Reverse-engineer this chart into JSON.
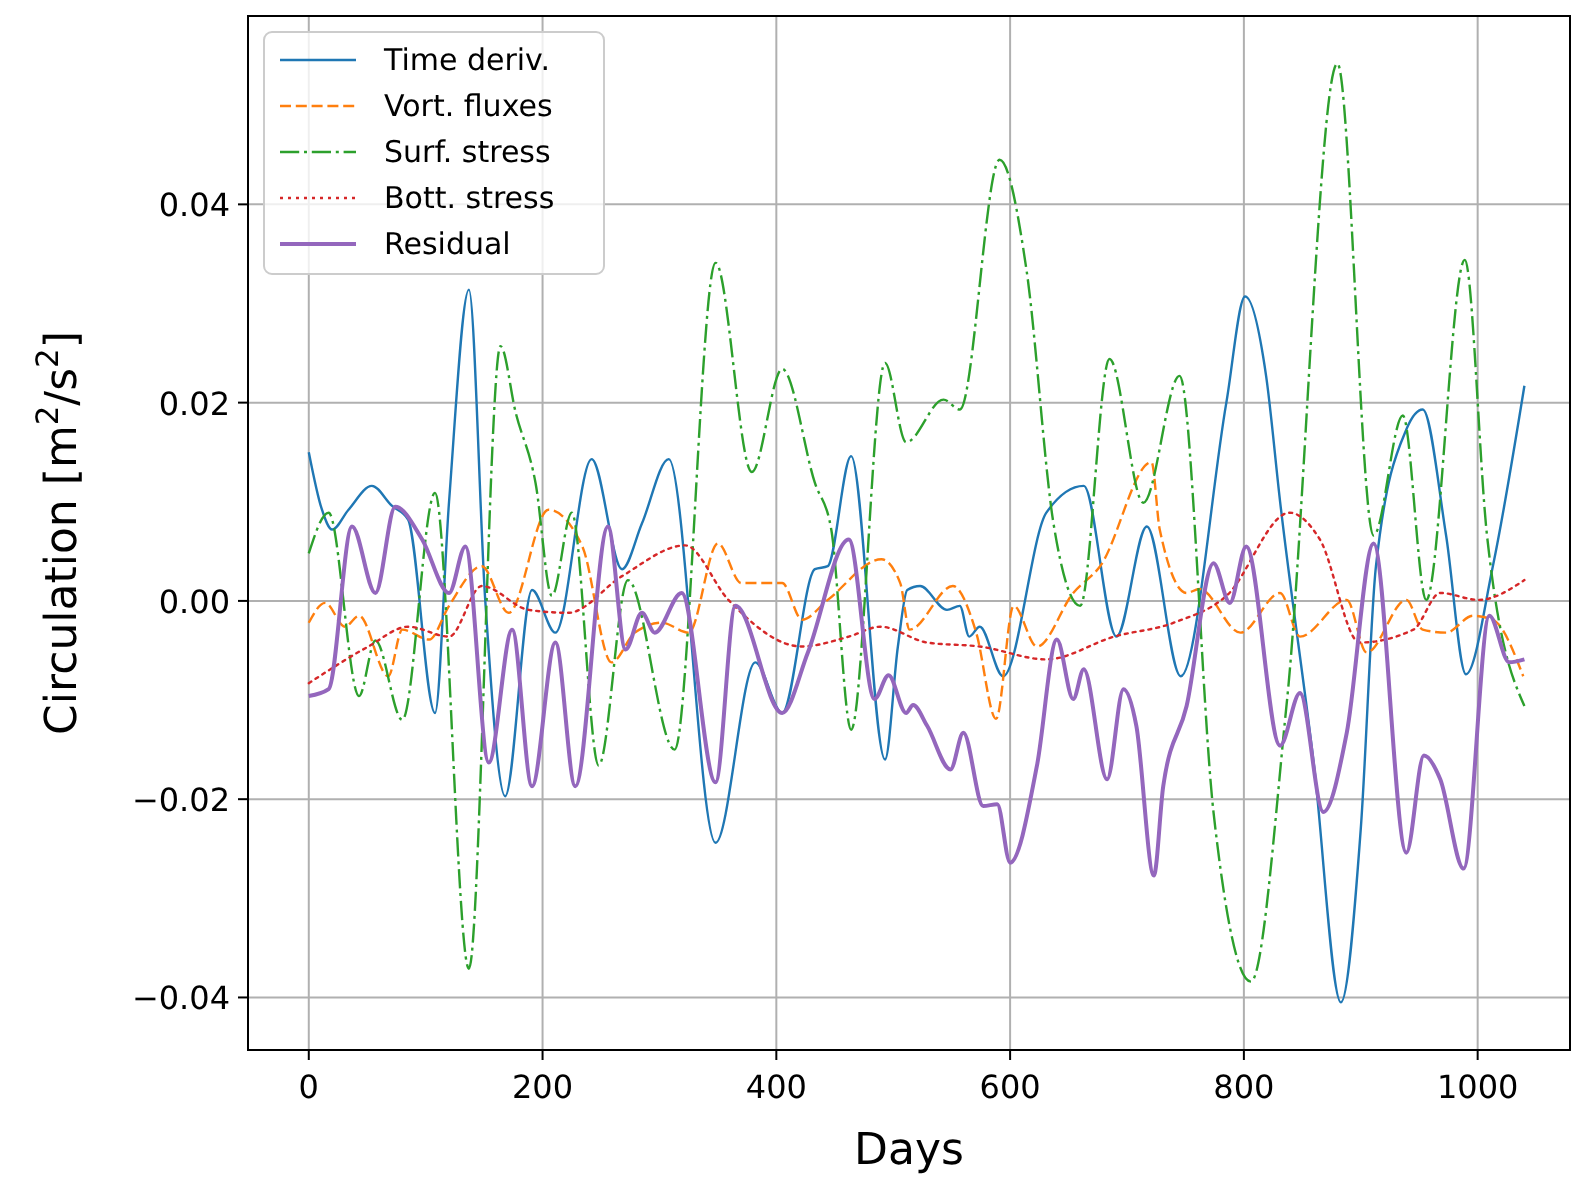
{
  "chart_data": {
    "type": "line",
    "xlabel": "Days",
    "ylabel": "Circulation [m$^{2}$/s$^{2}$]",
    "xlim": [
      -52,
      1079
    ],
    "ylim": [
      -0.0453,
      0.059
    ],
    "xticks": [
      0,
      200,
      400,
      600,
      800,
      1000
    ],
    "yticks": [
      {
        "value": -0.04,
        "label": "−0.04"
      },
      {
        "value": -0.02,
        "label": "−0.02"
      },
      {
        "value": 0,
        "label": "0.00"
      },
      {
        "value": 0.02,
        "label": "0.02"
      },
      {
        "value": 0.04,
        "label": "0.04"
      }
    ],
    "grid": true,
    "legend": "top left",
    "series": [
      {
        "name": "Time deriv.",
        "color": "#1f77b4",
        "line_style": "solid",
        "x": [
          0,
          11,
          20,
          34,
          54,
          71,
          85,
          108,
          120,
          137,
          151,
          168,
          191,
          211,
          242,
          268,
          285,
          308,
          348,
          382,
          405,
          433,
          444,
          464,
          493,
          504,
          512,
          523,
          546,
          557,
          565,
          574,
          594,
          631,
          663,
          691,
          717,
          746,
          785,
          801,
          819,
          831,
          860,
          883,
          900,
          913,
          939,
          953,
          973,
          990,
          1013,
          1040
        ],
        "values": [
          0.015,
          0.0093,
          0.0072,
          0.0092,
          0.0116,
          0.0096,
          0.0082,
          -0.0113,
          0.01,
          0.0314,
          0.0,
          -0.0197,
          0.0011,
          -0.0032,
          0.0143,
          0.0032,
          0.0078,
          0.0143,
          -0.0244,
          -0.0062,
          -0.0113,
          0.0032,
          0.0035,
          0.0146,
          -0.016,
          -0.0046,
          0.0011,
          0.0015,
          -0.0009,
          -0.0005,
          -0.0036,
          -0.0026,
          -0.0076,
          0.0089,
          0.0116,
          -0.0036,
          0.0075,
          -0.0076,
          0.02,
          0.0307,
          0.0227,
          0.01,
          -0.0166,
          -0.0405,
          -0.023,
          0.0035,
          0.0173,
          0.0193,
          0.0066,
          -0.0074,
          0.0035,
          0.0217
        ]
      },
      {
        "name": "Vort. fluxes",
        "color": "#ff7f0e",
        "line_style": "dashed",
        "x": [
          0,
          14,
          31,
          43,
          68,
          80,
          103,
          120,
          148,
          171,
          205,
          234,
          259,
          279,
          302,
          325,
          350,
          370,
          405,
          422,
          444,
          490,
          506,
          514,
          551,
          571,
          588,
          603,
          623,
          654,
          677,
          721,
          728,
          751,
          762,
          797,
          831,
          848,
          888,
          905,
          939,
          953,
          973,
          996,
          1013,
          1039
        ],
        "values": [
          -0.0022,
          -0.0002,
          -0.0026,
          -0.0015,
          -0.0076,
          -0.0029,
          -0.0039,
          -0.0005,
          0.0035,
          -0.0012,
          0.0092,
          0.0055,
          -0.0062,
          -0.0032,
          -0.0022,
          -0.0032,
          0.0058,
          0.0018,
          0.0018,
          -0.0019,
          0.0001,
          0.0042,
          0.0018,
          -0.0029,
          0.0015,
          -0.0032,
          -0.0119,
          -0.0005,
          -0.0046,
          0.0008,
          0.0035,
          0.014,
          0.0072,
          0.0008,
          0.0012,
          -0.0032,
          0.0008,
          -0.0036,
          0.0001,
          -0.0052,
          0.0001,
          -0.0029,
          -0.0032,
          -0.0015,
          -0.0019,
          -0.0076
        ]
      },
      {
        "name": "Surf. stress",
        "color": "#2ca02c",
        "line_style": "dashdot",
        "x": [
          0,
          17,
          43,
          57,
          80,
          108,
          137,
          164,
          177,
          194,
          208,
          225,
          248,
          273,
          313,
          348,
          379,
          405,
          433,
          447,
          464,
          493,
          511,
          543,
          557,
          591,
          614,
          637,
          660,
          685,
          714,
          745,
          774,
          806,
          837,
          880,
          911,
          936,
          956,
          989,
          1008,
          1040
        ],
        "values": [
          0.0048,
          0.0089,
          -0.0096,
          -0.004,
          -0.012,
          0.0109,
          -0.0371,
          0.0257,
          0.019,
          0.0119,
          0.0005,
          0.0089,
          -0.0166,
          0.0021,
          -0.015,
          0.0341,
          0.013,
          0.0234,
          0.0119,
          0.0072,
          -0.013,
          0.024,
          0.016,
          0.0203,
          0.0193,
          0.0445,
          0.0334,
          0.0079,
          -0.0005,
          0.0244,
          0.0099,
          0.0227,
          -0.0213,
          -0.0384,
          -0.0099,
          0.0542,
          0.0066,
          0.0187,
          0.0001,
          0.0344,
          0.0066,
          -0.0106
        ]
      },
      {
        "name": "Bott. stress",
        "color": "#d62728",
        "line_style": "dotted",
        "x": [
          0,
          51,
          85,
          120,
          148,
          188,
          222,
          268,
          322,
          359,
          422,
          462,
          489,
          529,
          574,
          631,
          689,
          740,
          785,
          839,
          865,
          899,
          945,
          968,
          1001,
          1040
        ],
        "values": [
          -0.0083,
          -0.0046,
          -0.0026,
          -0.0036,
          0.0015,
          -0.0009,
          -0.0012,
          0.0025,
          0.0056,
          0.0001,
          -0.0046,
          -0.0036,
          -0.0026,
          -0.0042,
          -0.0046,
          -0.0059,
          -0.0036,
          -0.0022,
          0.0005,
          0.0089,
          0.0062,
          -0.0042,
          -0.0029,
          0.0008,
          0.0001,
          0.0021
        ]
      },
      {
        "name": "Residual",
        "color": "#9467bd",
        "line_style": "solid",
        "x": [
          0,
          17,
          37,
          57,
          74,
          97,
          120,
          134,
          154,
          174,
          191,
          211,
          228,
          256,
          271,
          285,
          296,
          319,
          348,
          365,
          405,
          427,
          462,
          484,
          496,
          511,
          517,
          529,
          549,
          560,
          577,
          589,
          600,
          623,
          640,
          654,
          663,
          683,
          697,
          708,
          723,
          731,
          751,
          774,
          788,
          802,
          831,
          848,
          868,
          888,
          911,
          939,
          954,
          968,
          988,
          1010,
          1027,
          1040
        ],
        "values": [
          -0.0096,
          -0.0089,
          0.0075,
          0.0008,
          0.0095,
          0.0062,
          0.0008,
          0.0055,
          -0.0163,
          -0.0029,
          -0.0187,
          -0.0042,
          -0.0187,
          0.0075,
          -0.0049,
          -0.0012,
          -0.0032,
          0.0008,
          -0.0183,
          -0.0005,
          -0.0113,
          -0.0052,
          0.0062,
          -0.0099,
          -0.0075,
          -0.0113,
          -0.0105,
          -0.0126,
          -0.017,
          -0.0133,
          -0.0207,
          -0.0205,
          -0.0264,
          -0.0166,
          -0.0039,
          -0.0099,
          -0.0069,
          -0.018,
          -0.0089,
          -0.0126,
          -0.0277,
          -0.0187,
          -0.0106,
          0.0038,
          -0.0002,
          0.0055,
          -0.0146,
          -0.0093,
          -0.0213,
          -0.0133,
          0.0058,
          -0.0254,
          -0.0156,
          -0.018,
          -0.027,
          -0.0015,
          -0.0062,
          -0.0059
        ]
      }
    ]
  }
}
